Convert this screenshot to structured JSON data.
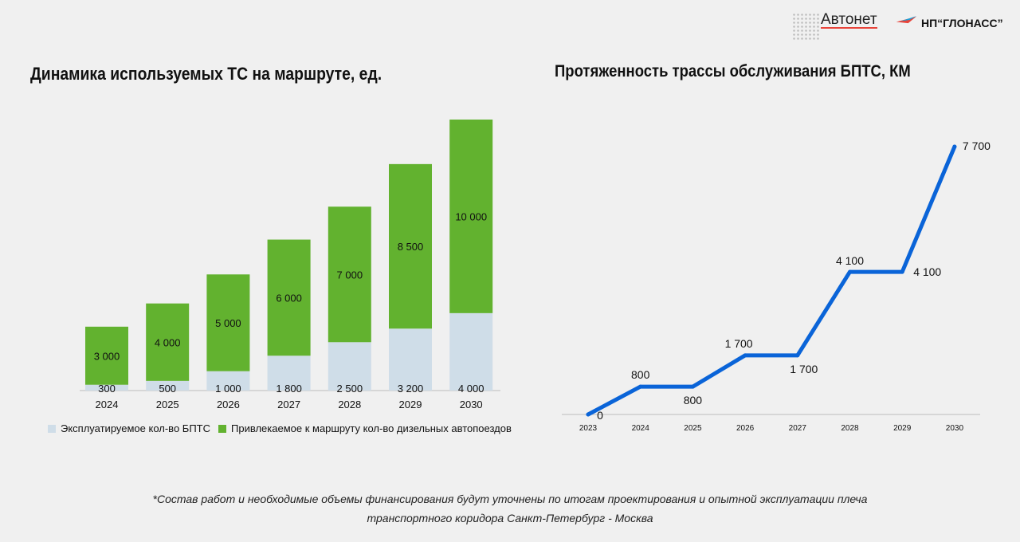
{
  "logos": {
    "avtonet": "Автонет",
    "glonass": "НП“ГЛОНАСС”"
  },
  "chart_data": [
    {
      "type": "bar",
      "stacked": true,
      "title": "Динамика используемых ТС на маршруте, ед.",
      "categories": [
        "2024",
        "2025",
        "2026",
        "2027",
        "2028",
        "2029",
        "2030"
      ],
      "series": [
        {
          "name": "Эксплуатируемое кол-во БПТС",
          "labels": [
            "300",
            "500",
            "1 000",
            "1 800",
            "2 500",
            "3 200",
            "4 000"
          ],
          "values": [
            300,
            500,
            1000,
            1800,
            2500,
            3200,
            4000
          ],
          "color": "#cfdde8"
        },
        {
          "name": "Привлекаемое к маршруту кол-во дизельных автопоездов",
          "labels": [
            "3 000",
            "4 000",
            "5 000",
            "6 000",
            "7 000",
            "8 500",
            "10 000"
          ],
          "values": [
            3000,
            4000,
            5000,
            6000,
            7000,
            8500,
            10000
          ],
          "color": "#62b22f"
        }
      ],
      "ylim": [
        0,
        14000
      ],
      "grid": false,
      "legend": "bottom"
    },
    {
      "type": "line",
      "title": "Протяженность трассы обслуживания БПТС, КМ",
      "categories": [
        "2023",
        "2024",
        "2025",
        "2026",
        "2027",
        "2028",
        "2029",
        "2030"
      ],
      "values": [
        0,
        800,
        800,
        1700,
        1700,
        4100,
        4100,
        7700
      ],
      "labels": [
        "0",
        "800",
        "800",
        "1 700",
        "1 700",
        "4 100",
        "4 100",
        "7 700"
      ],
      "color": "#0a64d8",
      "ylim": [
        0,
        7700
      ],
      "grid": false
    }
  ],
  "footnote": {
    "line1": "*Состав работ и необходимые объемы финансирования будут уточнены по итогам проектирования и опытной эксплуатации плеча",
    "line2": "транспортного коридора Санкт-Петербург - Москва"
  }
}
